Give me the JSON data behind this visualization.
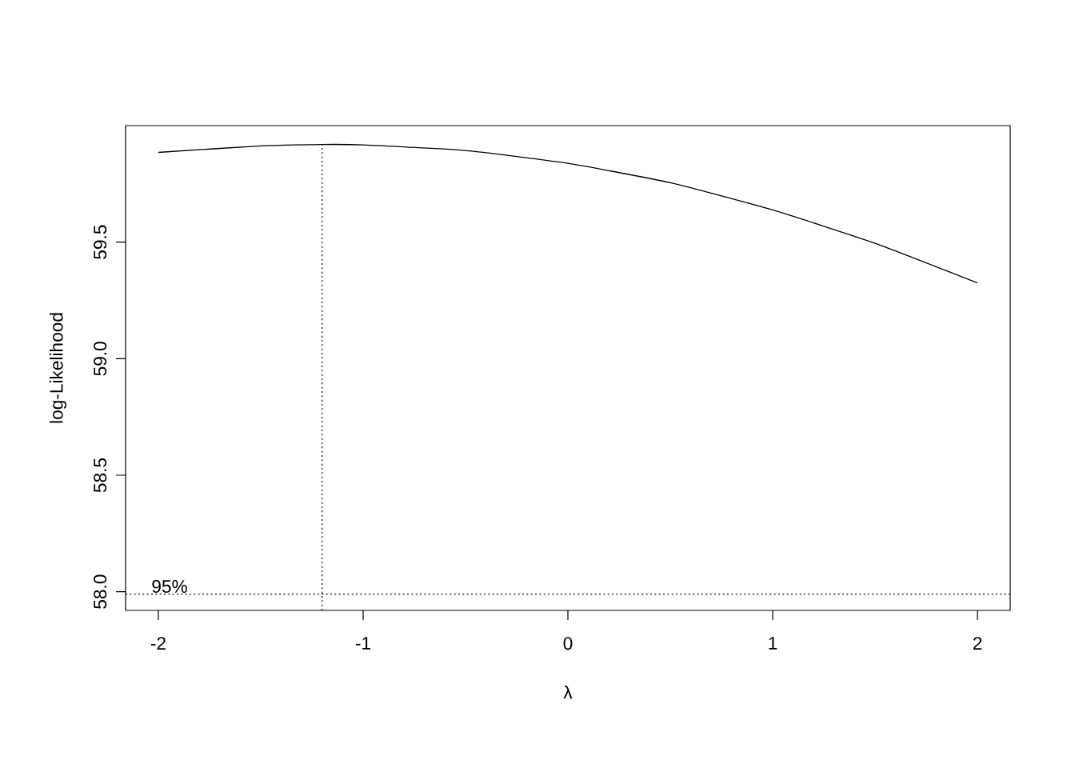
{
  "chart_data": {
    "type": "line",
    "xlabel": "λ",
    "ylabel": "log-Likelihood",
    "x": [
      -2,
      -1.5,
      -1.2,
      -1,
      -0.5,
      0,
      0.5,
      1,
      1.5,
      2
    ],
    "series": [
      {
        "color": "#000000",
        "values": [
          59.885,
          59.913,
          59.919,
          59.917,
          59.893,
          59.838,
          59.755,
          59.638,
          59.495,
          59.325
        ]
      }
    ],
    "xlim": [
      -2.16,
      2.16
    ],
    "ylim": [
      57.92,
      60.0
    ],
    "xticks": [
      -2,
      -1,
      0,
      1,
      2
    ],
    "yticks": [
      {
        "value": 58.0,
        "label": "58.0"
      },
      58.5,
      {
        "value": 59.0,
        "label": "59.0"
      },
      59.5
    ],
    "ref_lines": [
      {
        "axis": "x",
        "value": -1.2,
        "line_style": "dotted"
      },
      {
        "axis": "y",
        "value": 57.99,
        "line_style": "dotted"
      }
    ],
    "annotations": [
      {
        "text": "95%",
        "x": -2.04,
        "y": 57.99
      }
    ],
    "grid": false,
    "marker": "none",
    "line_style": "solid"
  }
}
